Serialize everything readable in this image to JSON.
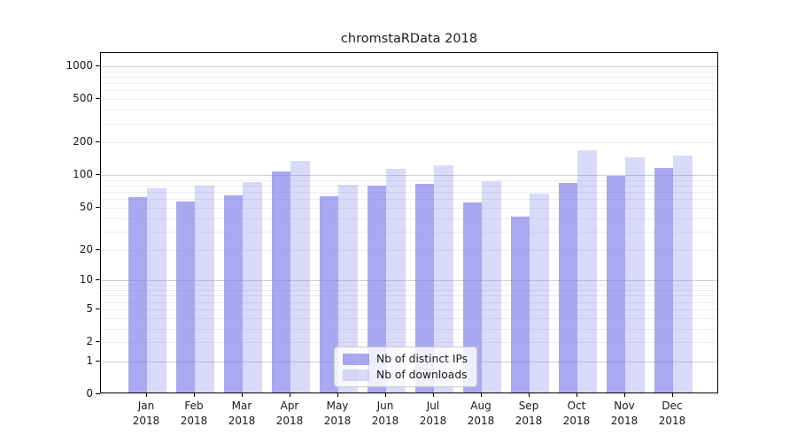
{
  "chart_data": {
    "type": "bar",
    "title": "chromstaRData 2018",
    "categories": [
      "Jan",
      "Feb",
      "Mar",
      "Apr",
      "May",
      "Jun",
      "Jul",
      "Aug",
      "Sep",
      "Oct",
      "Nov",
      "Dec"
    ],
    "year": "2018",
    "series": [
      {
        "name": "Nb of distinct IPs",
        "color_hex_on_white": "#a8a8f0",
        "color_rgba": "rgba(124,124,235,0.66)",
        "values": [
          60,
          55,
          63,
          105,
          61,
          77,
          80,
          54,
          40,
          82,
          94,
          113
        ]
      },
      {
        "name": "Nb of downloads",
        "color_hex_on_white": "#d9d9f5",
        "color_rgba": "rgba(124,124,235,0.29)",
        "values": [
          73,
          77,
          83,
          130,
          79,
          111,
          118,
          85,
          65,
          164,
          140,
          145
        ]
      }
    ],
    "yticks": [
      0,
      1,
      2,
      5,
      10,
      20,
      50,
      100,
      200,
      500,
      1000
    ],
    "ylim": [
      0,
      1000
    ],
    "scale": "log1p",
    "grid": "horizontal major+minor, log-spaced",
    "legend_position": "inside plot, lower center",
    "colors": {
      "major_gridline": "#cfcfcf",
      "minor_gridline": "#ededed",
      "axis": "#000000",
      "background": "#ffffff"
    }
  }
}
